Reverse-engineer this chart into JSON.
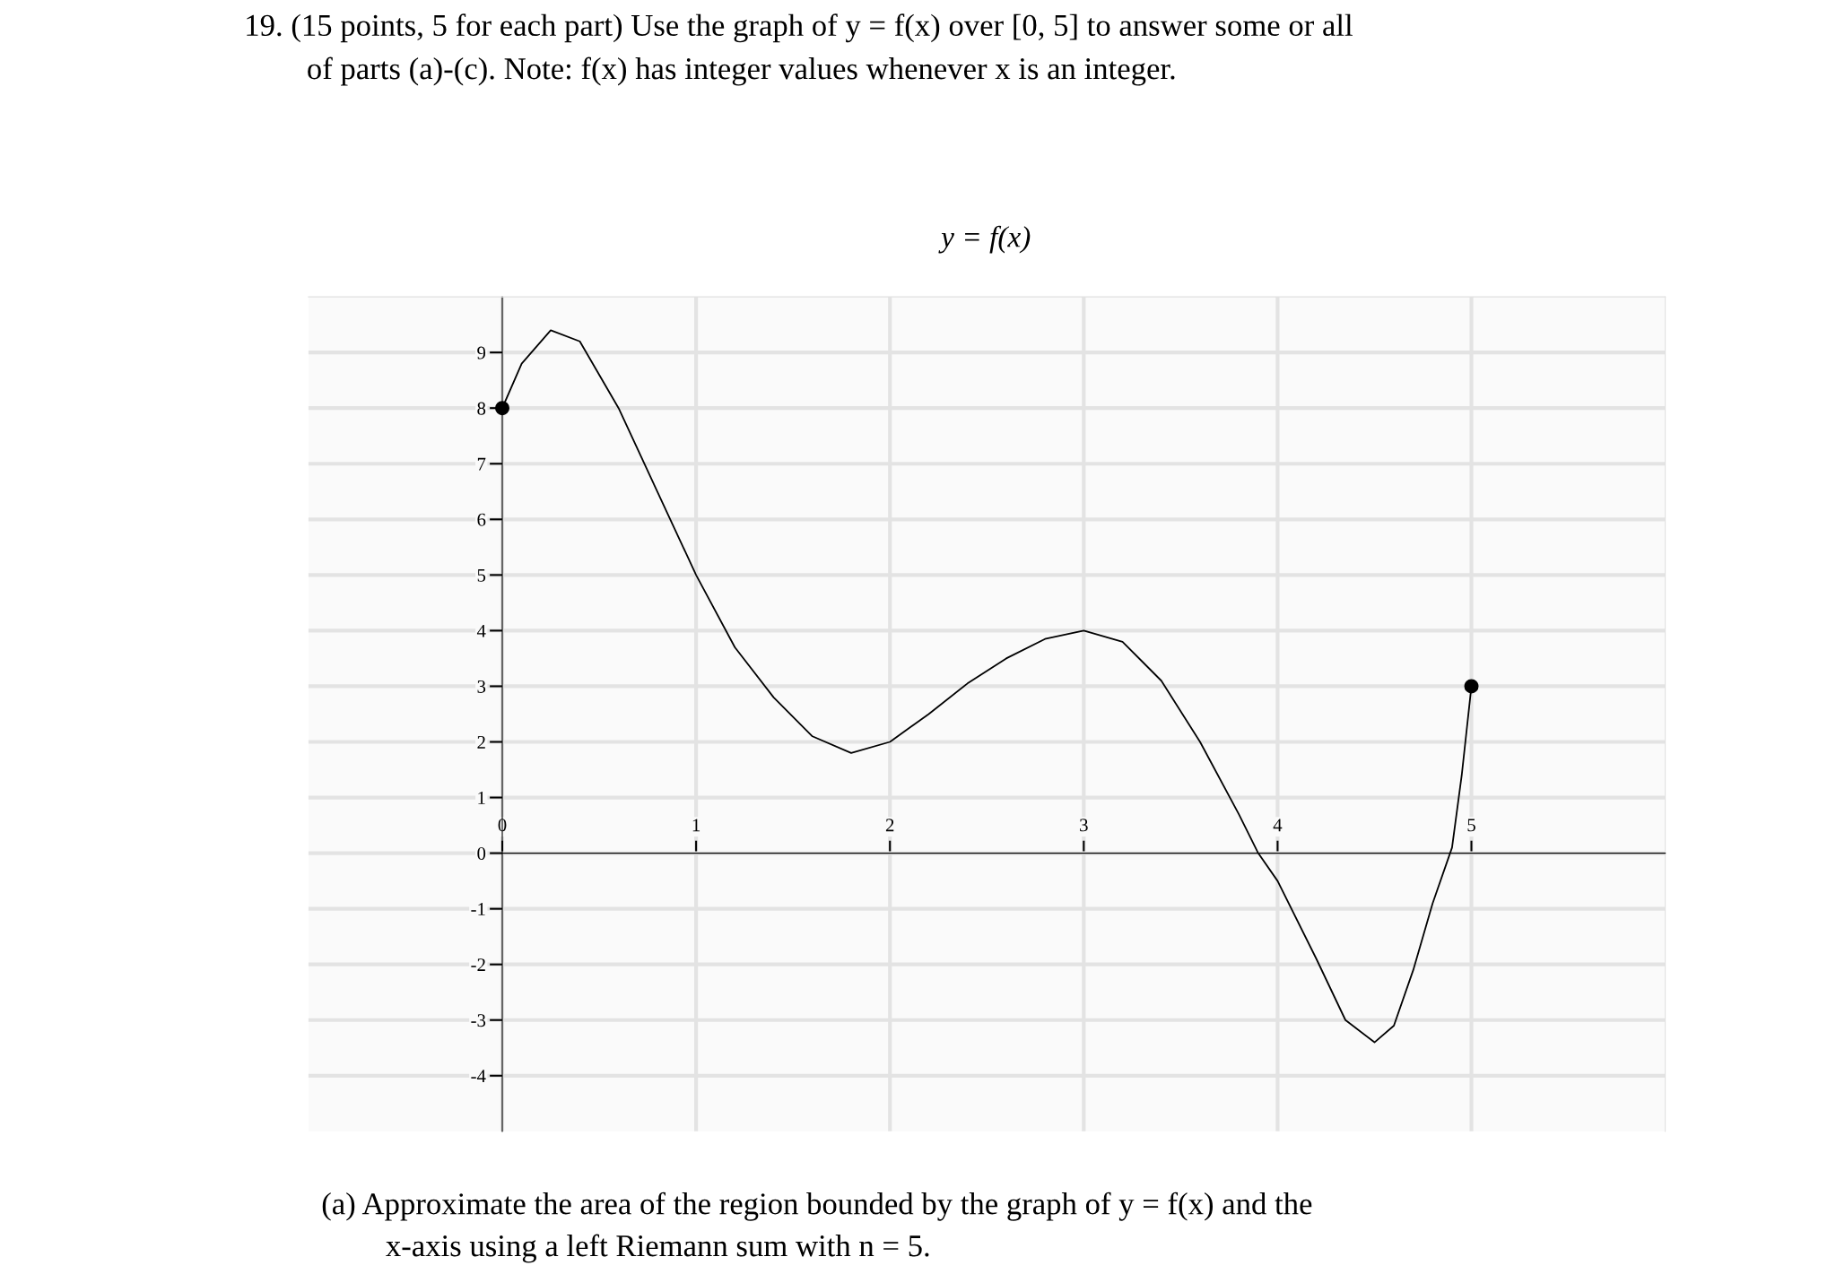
{
  "chart_data": {
    "type": "line",
    "title": "y = f(x)",
    "annotations": [
      "19. (15 points, 5 for each part) Use the graph of y = f(x) over [0, 5] to answer some or all",
      "of parts (a)-(c). Note: f(x) has integer values whenever x is an integer.",
      "(a) Approximate the area of the region bounded by the graph of y = f(x) and the",
      "x-axis using a left Riemann sum with n = 5."
    ],
    "series": [
      {
        "type": "line",
        "color": "#000000",
        "marker": "none",
        "x": [
          0,
          0.1,
          0.25,
          0.4,
          0.6,
          0.8,
          1.0,
          1.2,
          1.4,
          1.6,
          1.8,
          2.0,
          2.2,
          2.4,
          2.6,
          2.8,
          3.0,
          3.2,
          3.4,
          3.6,
          3.8,
          3.9,
          4.0,
          4.2,
          4.35,
          4.5,
          4.6,
          4.7,
          4.8,
          4.9,
          4.95,
          5.0
        ],
        "values": [
          8,
          8.8,
          9.4,
          9.2,
          8.0,
          6.5,
          5.0,
          3.7,
          2.8,
          2.1,
          1.8,
          2.0,
          2.5,
          3.05,
          3.5,
          3.85,
          4.0,
          3.8,
          3.1,
          2.0,
          0.7,
          0.0,
          -0.5,
          -1.9,
          -3.0,
          -3.4,
          -3.1,
          -2.1,
          -0.9,
          0.1,
          1.4,
          3.0
        ]
      },
      {
        "type": "scatter",
        "color": "#000000",
        "marker": "circle",
        "x": [
          0,
          5
        ],
        "values": [
          8,
          3
        ]
      }
    ],
    "xlim": [
      -1,
      6
    ],
    "ylim": [
      -5,
      10
    ],
    "xticks": [
      0,
      1,
      2,
      3,
      4,
      5
    ],
    "yticks": [
      -4,
      -3,
      -2,
      -1,
      0,
      1,
      2,
      3,
      4,
      5,
      6,
      7,
      8,
      9
    ],
    "grid": true,
    "legend": false
  }
}
